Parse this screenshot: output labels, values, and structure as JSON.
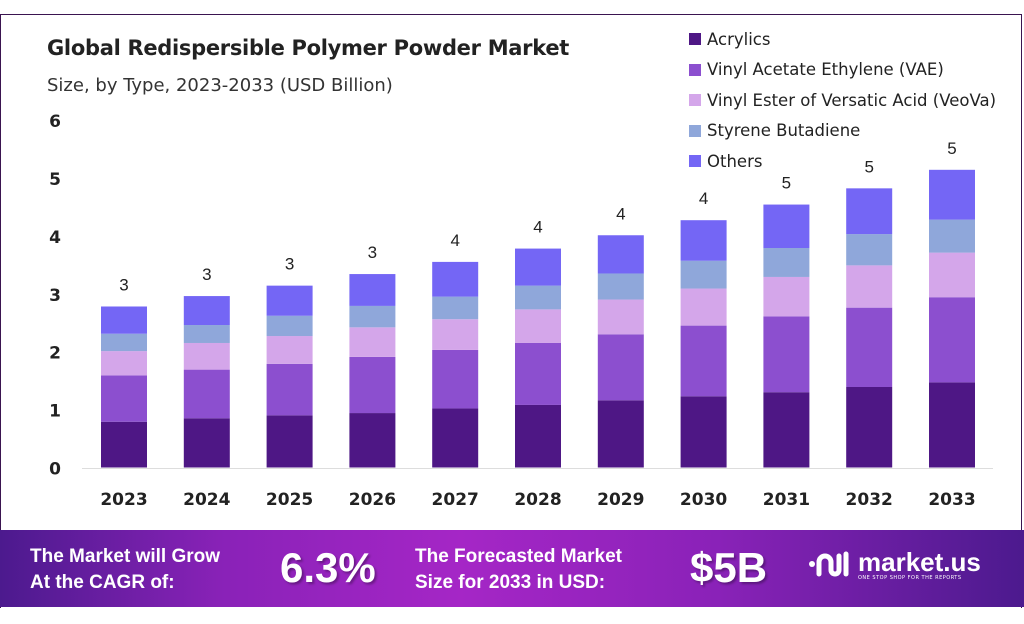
{
  "chart_data": {
    "type": "bar",
    "stacked": true,
    "title": "Global Redispersible Polymer Powder Market",
    "subtitle": "Size, by Type, 2023-2033 (USD Billion)",
    "xlabel": "",
    "ylabel": "",
    "ylim": [
      0,
      6
    ],
    "yticks": [
      0,
      1,
      2,
      3,
      4,
      5,
      6
    ],
    "grid": false,
    "legend_position": "top-right",
    "categories": [
      "2023",
      "2024",
      "2025",
      "2026",
      "2027",
      "2028",
      "2029",
      "2030",
      "2031",
      "2032",
      "2033"
    ],
    "series": [
      {
        "name": "Acrylics",
        "color": "#4e1785",
        "values": [
          0.79,
          0.85,
          0.9,
          0.94,
          1.02,
          1.08,
          1.16,
          1.23,
          1.3,
          1.39,
          1.47
        ]
      },
      {
        "name": "Vinyl Acetate Ethylene (VAE)",
        "color": "#8c4fcf",
        "values": [
          0.8,
          0.84,
          0.89,
          0.97,
          1.01,
          1.07,
          1.14,
          1.22,
          1.31,
          1.37,
          1.47
        ]
      },
      {
        "name": "Vinyl Ester of Versatic Acid (VeoVa)",
        "color": "#d4a6ea",
        "values": [
          0.42,
          0.46,
          0.48,
          0.51,
          0.53,
          0.58,
          0.6,
          0.64,
          0.68,
          0.73,
          0.77
        ]
      },
      {
        "name": "Styrene Butadiene",
        "color": "#8fa7da",
        "values": [
          0.3,
          0.31,
          0.35,
          0.37,
          0.39,
          0.41,
          0.45,
          0.48,
          0.5,
          0.54,
          0.57
        ]
      },
      {
        "name": "Others",
        "color": "#7466f5",
        "values": [
          0.47,
          0.5,
          0.52,
          0.55,
          0.6,
          0.64,
          0.66,
          0.7,
          0.75,
          0.79,
          0.86
        ]
      }
    ],
    "data_labels": [
      "3",
      "3",
      "3",
      "3",
      "4",
      "4",
      "4",
      "4",
      "5",
      "5",
      "5"
    ]
  },
  "footer": {
    "cagr_text_line1": "The Market will Grow",
    "cagr_text_line2": "At the CAGR of:",
    "cagr_value": "6.3%",
    "forecast_text_line1": "The Forecasted Market",
    "forecast_text_line2": "Size for 2033 in USD:",
    "forecast_value": "$5B",
    "logo_name": "market.us",
    "logo_tagline": "ONE STOP SHOP FOR THE REPORTS"
  }
}
